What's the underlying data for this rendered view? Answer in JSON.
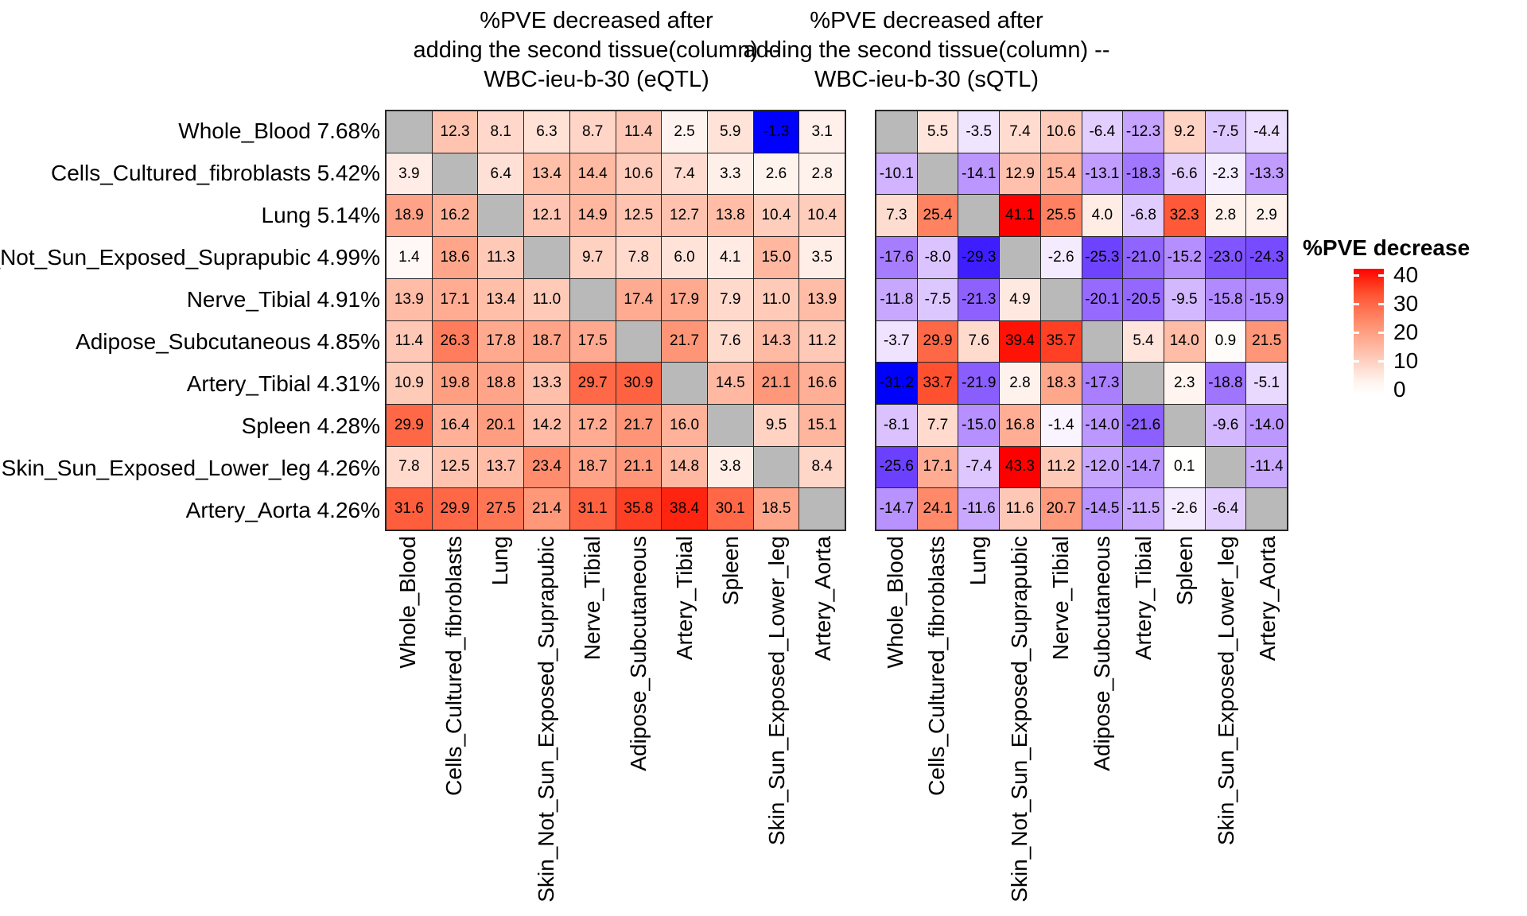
{
  "chart_data": {
    "type": "heatmap",
    "description": "Two 10x10 tissue-by-tissue heatmaps; cell value = %PVE decreased after adding the second tissue (column). Diagonal cells are gray (NA).",
    "tissues": [
      "Whole_Blood",
      "Cells_Cultured_fibroblasts",
      "Lung",
      "Skin_Not_Sun_Exposed_Suprapubic",
      "Nerve_Tibial",
      "Adipose_Subcutaneous",
      "Artery_Tibial",
      "Spleen",
      "Skin_Sun_Exposed_Lower_leg",
      "Artery_Aorta"
    ],
    "row_pve": [
      "7.68%",
      "5.42%",
      "5.14%",
      "4.99%",
      "4.91%",
      "4.85%",
      "4.31%",
      "4.28%",
      "4.26%",
      "4.26%"
    ],
    "row_labels": [
      "Whole_Blood 7.68%",
      "Cells_Cultured_fibroblasts 5.42%",
      "Lung 5.14%",
      "Skin_Not_Sun_Exposed_Suprapubic 4.99%",
      "Nerve_Tibial 4.91%",
      "Adipose_Subcutaneous 4.85%",
      "Artery_Tibial 4.31%",
      "Spleen 4.28%",
      "Skin_Sun_Exposed_Lower_leg 4.26%",
      "Artery_Aorta 4.26%"
    ],
    "col_labels": [
      "Whole_Blood",
      "Cells_Cultured_fibroblasts",
      "Lung",
      "Skin_Not_Sun_Exposed_Suprapubic",
      "Nerve_Tibial",
      "Adipose_Subcutaneous",
      "Artery_Tibial",
      "Spleen",
      "Skin_Sun_Exposed_Lower_leg",
      "Artery_Aorta"
    ],
    "panels": [
      {
        "id": "eqtl",
        "title": "%PVE decreased after\nadding the second tissue(column) --\nWBC-ieu-b-30 (eQTL)",
        "matrix": [
          [
            null,
            12.3,
            8.1,
            6.3,
            8.7,
            11.4,
            2.5,
            5.9,
            -1.3,
            3.1
          ],
          [
            3.9,
            null,
            6.4,
            13.4,
            14.4,
            10.6,
            7.4,
            3.3,
            2.6,
            2.8
          ],
          [
            18.9,
            16.2,
            null,
            12.1,
            14.9,
            12.5,
            12.7,
            13.8,
            10.4,
            10.4
          ],
          [
            1.4,
            18.6,
            11.3,
            null,
            9.7,
            7.8,
            6.0,
            4.1,
            15.0,
            3.5
          ],
          [
            13.9,
            17.1,
            13.4,
            11.0,
            null,
            17.4,
            17.9,
            7.9,
            11.0,
            13.9
          ],
          [
            11.4,
            26.3,
            17.8,
            18.7,
            17.5,
            null,
            21.7,
            7.6,
            14.3,
            11.2
          ],
          [
            10.9,
            19.8,
            18.8,
            13.3,
            29.7,
            30.9,
            null,
            14.5,
            21.1,
            16.6
          ],
          [
            29.9,
            16.4,
            20.1,
            14.2,
            17.2,
            21.7,
            16.0,
            null,
            9.5,
            15.1
          ],
          [
            7.8,
            12.5,
            13.7,
            23.4,
            18.7,
            21.1,
            14.8,
            3.8,
            null,
            8.4
          ],
          [
            31.6,
            29.9,
            27.5,
            21.4,
            31.1,
            35.8,
            38.4,
            30.1,
            18.5,
            null
          ]
        ]
      },
      {
        "id": "sqtl",
        "title": "%PVE decreased after\nadding the second tissue(column) --\nWBC-ieu-b-30 (sQTL)",
        "matrix": [
          [
            null,
            5.5,
            -3.5,
            7.4,
            10.6,
            -6.4,
            -12.3,
            9.2,
            -7.5,
            -4.4
          ],
          [
            -10.1,
            null,
            -14.1,
            12.9,
            15.4,
            -13.1,
            -18.3,
            -6.6,
            -2.3,
            -13.3
          ],
          [
            7.3,
            25.4,
            null,
            41.1,
            25.5,
            4.0,
            -6.8,
            32.3,
            2.8,
            2.9
          ],
          [
            -17.6,
            -8.0,
            -29.3,
            null,
            -2.6,
            -25.3,
            -21.0,
            -15.2,
            -23.0,
            -24.3
          ],
          [
            -11.8,
            -7.5,
            -21.3,
            4.9,
            null,
            -20.1,
            -20.5,
            -9.5,
            -15.8,
            -15.9
          ],
          [
            -3.7,
            29.9,
            7.6,
            39.4,
            35.7,
            null,
            5.4,
            14.0,
            0.9,
            21.5
          ],
          [
            -31.2,
            33.7,
            -21.9,
            2.8,
            18.3,
            -17.3,
            null,
            2.3,
            -18.8,
            -5.1
          ],
          [
            -8.1,
            7.7,
            -15.0,
            16.8,
            -1.4,
            -14.0,
            -21.6,
            null,
            -9.6,
            -14.0
          ],
          [
            -25.6,
            17.1,
            -7.4,
            43.3,
            11.2,
            -12.0,
            -14.7,
            0.1,
            null,
            -11.4
          ],
          [
            -14.7,
            24.1,
            -11.6,
            11.6,
            20.7,
            -14.5,
            -11.5,
            -2.6,
            -6.4,
            null
          ]
        ]
      }
    ],
    "legend": {
      "title": "%PVE decrease",
      "ticks": [
        40,
        30,
        20,
        10,
        0
      ],
      "vmax": 40,
      "color_high": "#FF0000",
      "color_mid": "#FFFFFF",
      "color_low": "#0000FF",
      "color_na": "#B9B9B9"
    },
    "value_format": "one_decimal",
    "layout_hints": {
      "grid": "off",
      "legend_position": "right",
      "diagonal": "NA gray"
    }
  }
}
